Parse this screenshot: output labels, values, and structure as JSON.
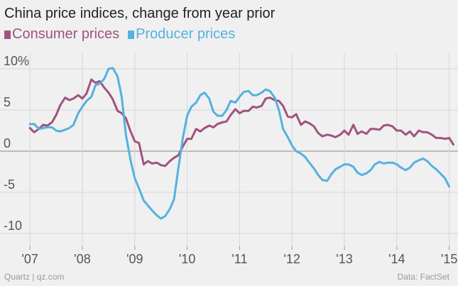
{
  "chart_data": {
    "type": "line",
    "title": "China price indices, change from year prior",
    "xlabel": "",
    "ylabel": "",
    "ylim": [
      -10,
      10
    ],
    "xlim": [
      2006.97,
      2015.1
    ],
    "y_ticks": [
      10,
      5,
      0,
      -5,
      -10
    ],
    "y_tick_labels": [
      "10%",
      "5",
      "0",
      "-5",
      "-10"
    ],
    "x_ticks": [
      2007,
      2008,
      2009,
      2010,
      2011,
      2012,
      2013,
      2014,
      2015
    ],
    "x_tick_labels": [
      "'07",
      "'08",
      "'09",
      "'10",
      "'11",
      "'12",
      "'13",
      "'14",
      "'15"
    ],
    "colors": {
      "consumer": "#a0537f",
      "producer": "#54b1e0",
      "grid": "#d6d6d6",
      "zero": "#888888"
    },
    "series": [
      {
        "name": "Consumer prices",
        "color": "#a0537f",
        "points": [
          [
            2007.0,
            2.8
          ],
          [
            2007.08,
            2.3
          ],
          [
            2007.17,
            2.7
          ],
          [
            2007.25,
            3.2
          ],
          [
            2007.33,
            3.1
          ],
          [
            2007.42,
            3.5
          ],
          [
            2007.5,
            4.4
          ],
          [
            2007.58,
            5.6
          ],
          [
            2007.67,
            6.5
          ],
          [
            2007.75,
            6.2
          ],
          [
            2007.83,
            6.4
          ],
          [
            2007.92,
            6.8
          ],
          [
            2008.0,
            6.4
          ],
          [
            2008.08,
            7.0
          ],
          [
            2008.17,
            8.7
          ],
          [
            2008.25,
            8.3
          ],
          [
            2008.33,
            8.5
          ],
          [
            2008.42,
            7.7
          ],
          [
            2008.5,
            7.1
          ],
          [
            2008.58,
            6.3
          ],
          [
            2008.67,
            4.9
          ],
          [
            2008.75,
            4.6
          ],
          [
            2008.83,
            4.0
          ],
          [
            2008.92,
            2.4
          ],
          [
            2009.0,
            1.2
          ],
          [
            2009.08,
            1.0
          ],
          [
            2009.17,
            -1.6
          ],
          [
            2009.25,
            -1.2
          ],
          [
            2009.33,
            -1.5
          ],
          [
            2009.42,
            -1.4
          ],
          [
            2009.5,
            -1.7
          ],
          [
            2009.58,
            -1.8
          ],
          [
            2009.67,
            -1.2
          ],
          [
            2009.75,
            -0.8
          ],
          [
            2009.83,
            -0.5
          ],
          [
            2009.92,
            0.6
          ],
          [
            2010.0,
            1.5
          ],
          [
            2010.08,
            1.5
          ],
          [
            2010.17,
            2.7
          ],
          [
            2010.25,
            2.4
          ],
          [
            2010.33,
            2.8
          ],
          [
            2010.42,
            3.1
          ],
          [
            2010.5,
            2.9
          ],
          [
            2010.58,
            3.3
          ],
          [
            2010.67,
            3.5
          ],
          [
            2010.75,
            3.6
          ],
          [
            2010.83,
            4.4
          ],
          [
            2010.92,
            5.1
          ],
          [
            2011.0,
            4.6
          ],
          [
            2011.08,
            4.9
          ],
          [
            2011.17,
            4.9
          ],
          [
            2011.25,
            5.4
          ],
          [
            2011.33,
            5.3
          ],
          [
            2011.42,
            5.5
          ],
          [
            2011.5,
            6.4
          ],
          [
            2011.58,
            6.5
          ],
          [
            2011.67,
            6.2
          ],
          [
            2011.75,
            6.1
          ],
          [
            2011.83,
            5.5
          ],
          [
            2011.92,
            4.2
          ],
          [
            2012.0,
            4.1
          ],
          [
            2012.08,
            4.5
          ],
          [
            2012.17,
            3.2
          ],
          [
            2012.25,
            3.6
          ],
          [
            2012.33,
            3.4
          ],
          [
            2012.42,
            3.0
          ],
          [
            2012.5,
            2.2
          ],
          [
            2012.58,
            1.8
          ],
          [
            2012.67,
            2.0
          ],
          [
            2012.75,
            1.9
          ],
          [
            2012.83,
            1.7
          ],
          [
            2012.92,
            2.0
          ],
          [
            2013.0,
            2.5
          ],
          [
            2013.08,
            2.0
          ],
          [
            2013.17,
            3.2
          ],
          [
            2013.25,
            2.1
          ],
          [
            2013.33,
            2.4
          ],
          [
            2013.42,
            2.1
          ],
          [
            2013.5,
            2.7
          ],
          [
            2013.58,
            2.7
          ],
          [
            2013.67,
            2.6
          ],
          [
            2013.75,
            3.1
          ],
          [
            2013.83,
            3.2
          ],
          [
            2013.92,
            3.0
          ],
          [
            2014.0,
            2.5
          ],
          [
            2014.08,
            2.5
          ],
          [
            2014.17,
            2.0
          ],
          [
            2014.25,
            2.4
          ],
          [
            2014.33,
            1.8
          ],
          [
            2014.42,
            2.5
          ],
          [
            2014.5,
            2.3
          ],
          [
            2014.58,
            2.3
          ],
          [
            2014.67,
            2.0
          ],
          [
            2014.75,
            1.6
          ],
          [
            2014.83,
            1.6
          ],
          [
            2014.92,
            1.5
          ],
          [
            2015.0,
            1.6
          ],
          [
            2015.08,
            0.8
          ]
        ]
      },
      {
        "name": "Producer prices",
        "color": "#54b1e0",
        "points": [
          [
            2007.0,
            3.3
          ],
          [
            2007.08,
            3.3
          ],
          [
            2007.17,
            2.7
          ],
          [
            2007.25,
            2.8
          ],
          [
            2007.33,
            2.9
          ],
          [
            2007.42,
            2.9
          ],
          [
            2007.5,
            2.5
          ],
          [
            2007.58,
            2.4
          ],
          [
            2007.67,
            2.6
          ],
          [
            2007.75,
            2.8
          ],
          [
            2007.83,
            3.2
          ],
          [
            2007.92,
            4.6
          ],
          [
            2008.0,
            5.4
          ],
          [
            2008.08,
            6.1
          ],
          [
            2008.17,
            6.6
          ],
          [
            2008.25,
            8.0
          ],
          [
            2008.33,
            8.2
          ],
          [
            2008.42,
            8.8
          ],
          [
            2008.5,
            10.0
          ],
          [
            2008.58,
            10.1
          ],
          [
            2008.67,
            9.1
          ],
          [
            2008.75,
            6.6
          ],
          [
            2008.83,
            2.0
          ],
          [
            2008.92,
            -1.1
          ],
          [
            2009.0,
            -3.3
          ],
          [
            2009.08,
            -4.5
          ],
          [
            2009.17,
            -6.0
          ],
          [
            2009.25,
            -6.6
          ],
          [
            2009.33,
            -7.2
          ],
          [
            2009.42,
            -7.8
          ],
          [
            2009.5,
            -8.2
          ],
          [
            2009.58,
            -7.9
          ],
          [
            2009.67,
            -7.0
          ],
          [
            2009.75,
            -5.8
          ],
          [
            2009.83,
            -2.1
          ],
          [
            2009.92,
            1.7
          ],
          [
            2010.0,
            4.3
          ],
          [
            2010.08,
            5.4
          ],
          [
            2010.17,
            5.9
          ],
          [
            2010.25,
            6.8
          ],
          [
            2010.33,
            7.1
          ],
          [
            2010.42,
            6.4
          ],
          [
            2010.5,
            4.8
          ],
          [
            2010.58,
            4.3
          ],
          [
            2010.67,
            4.3
          ],
          [
            2010.75,
            5.0
          ],
          [
            2010.83,
            6.1
          ],
          [
            2010.92,
            5.9
          ],
          [
            2011.0,
            6.6
          ],
          [
            2011.08,
            7.2
          ],
          [
            2011.17,
            7.3
          ],
          [
            2011.25,
            6.8
          ],
          [
            2011.33,
            6.8
          ],
          [
            2011.42,
            7.1
          ],
          [
            2011.5,
            7.5
          ],
          [
            2011.58,
            7.3
          ],
          [
            2011.67,
            6.5
          ],
          [
            2011.75,
            5.0
          ],
          [
            2011.83,
            2.7
          ],
          [
            2011.92,
            1.7
          ],
          [
            2012.0,
            0.7
          ],
          [
            2012.08,
            0.0
          ],
          [
            2012.17,
            -0.3
          ],
          [
            2012.25,
            -0.7
          ],
          [
            2012.33,
            -1.4
          ],
          [
            2012.42,
            -2.1
          ],
          [
            2012.5,
            -2.9
          ],
          [
            2012.58,
            -3.5
          ],
          [
            2012.67,
            -3.6
          ],
          [
            2012.75,
            -2.8
          ],
          [
            2012.83,
            -2.2
          ],
          [
            2012.92,
            -1.9
          ],
          [
            2013.0,
            -1.6
          ],
          [
            2013.08,
            -1.6
          ],
          [
            2013.17,
            -1.9
          ],
          [
            2013.25,
            -2.6
          ],
          [
            2013.33,
            -2.9
          ],
          [
            2013.42,
            -2.7
          ],
          [
            2013.5,
            -2.3
          ],
          [
            2013.58,
            -1.6
          ],
          [
            2013.67,
            -1.3
          ],
          [
            2013.75,
            -1.5
          ],
          [
            2013.83,
            -1.4
          ],
          [
            2013.92,
            -1.4
          ],
          [
            2014.0,
            -1.6
          ],
          [
            2014.08,
            -2.0
          ],
          [
            2014.17,
            -2.3
          ],
          [
            2014.25,
            -2.0
          ],
          [
            2014.33,
            -1.4
          ],
          [
            2014.42,
            -1.1
          ],
          [
            2014.5,
            -0.9
          ],
          [
            2014.58,
            -1.2
          ],
          [
            2014.67,
            -1.8
          ],
          [
            2014.75,
            -2.2
          ],
          [
            2014.83,
            -2.7
          ],
          [
            2014.92,
            -3.3
          ],
          [
            2015.0,
            -4.3
          ]
        ]
      }
    ],
    "footer_left": "Quartz | qz.com",
    "footer_right": "Data: FactSet"
  }
}
